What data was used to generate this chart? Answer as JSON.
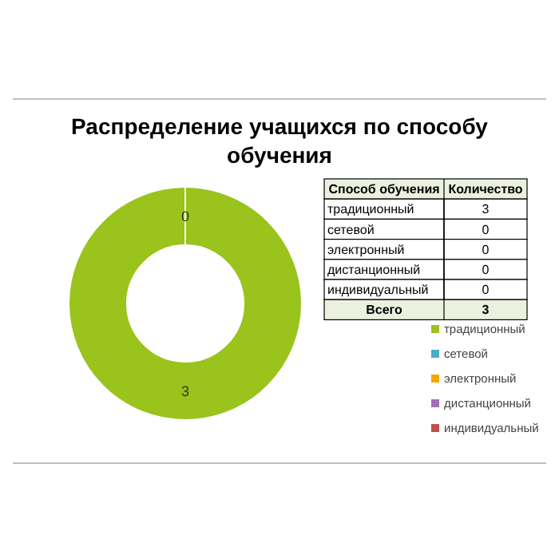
{
  "chart_data": {
    "type": "donut",
    "title": "Распределение учащихся по способу обучения",
    "categories": [
      "традиционный",
      "сетевой",
      "электронный",
      "дистанционный",
      "индивидуальный"
    ],
    "values": [
      3,
      0,
      0,
      0,
      0
    ],
    "colors": [
      "#9ac31c",
      "#4bacc6",
      "#f0a800",
      "#a36fb5",
      "#c0504d"
    ],
    "value_labels": [
      "3",
      "0",
      "0",
      "0",
      "0"
    ],
    "legend": "right",
    "annotations": [
      "Способ обучения",
      "Количество",
      "Всего",
      "3"
    ]
  }
}
